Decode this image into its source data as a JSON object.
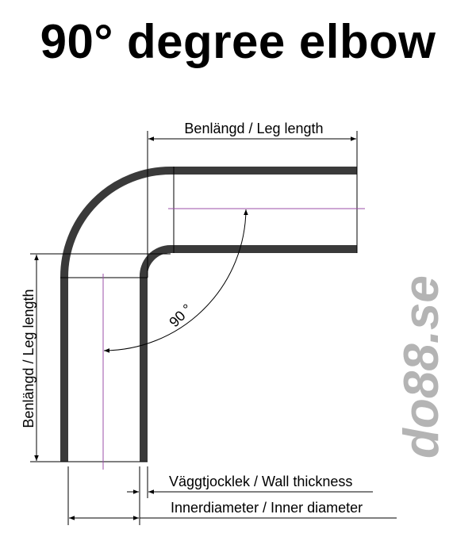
{
  "title": "90° degree elbow",
  "labels": {
    "leg_length_top": "Benlängd / Leg length",
    "leg_length_left": "Benlängd / Leg length",
    "angle": "90 °",
    "wall_thickness": "Väggtjocklek / Wall thickness",
    "inner_diameter": "Innerdiameter / Inner diameter"
  },
  "logo": {
    "text": "do88.se",
    "color": "#b4b4b4"
  },
  "colors": {
    "pipe": "#3a3a3a",
    "centerline": "#9b4fa8",
    "dimension": "#000000"
  }
}
